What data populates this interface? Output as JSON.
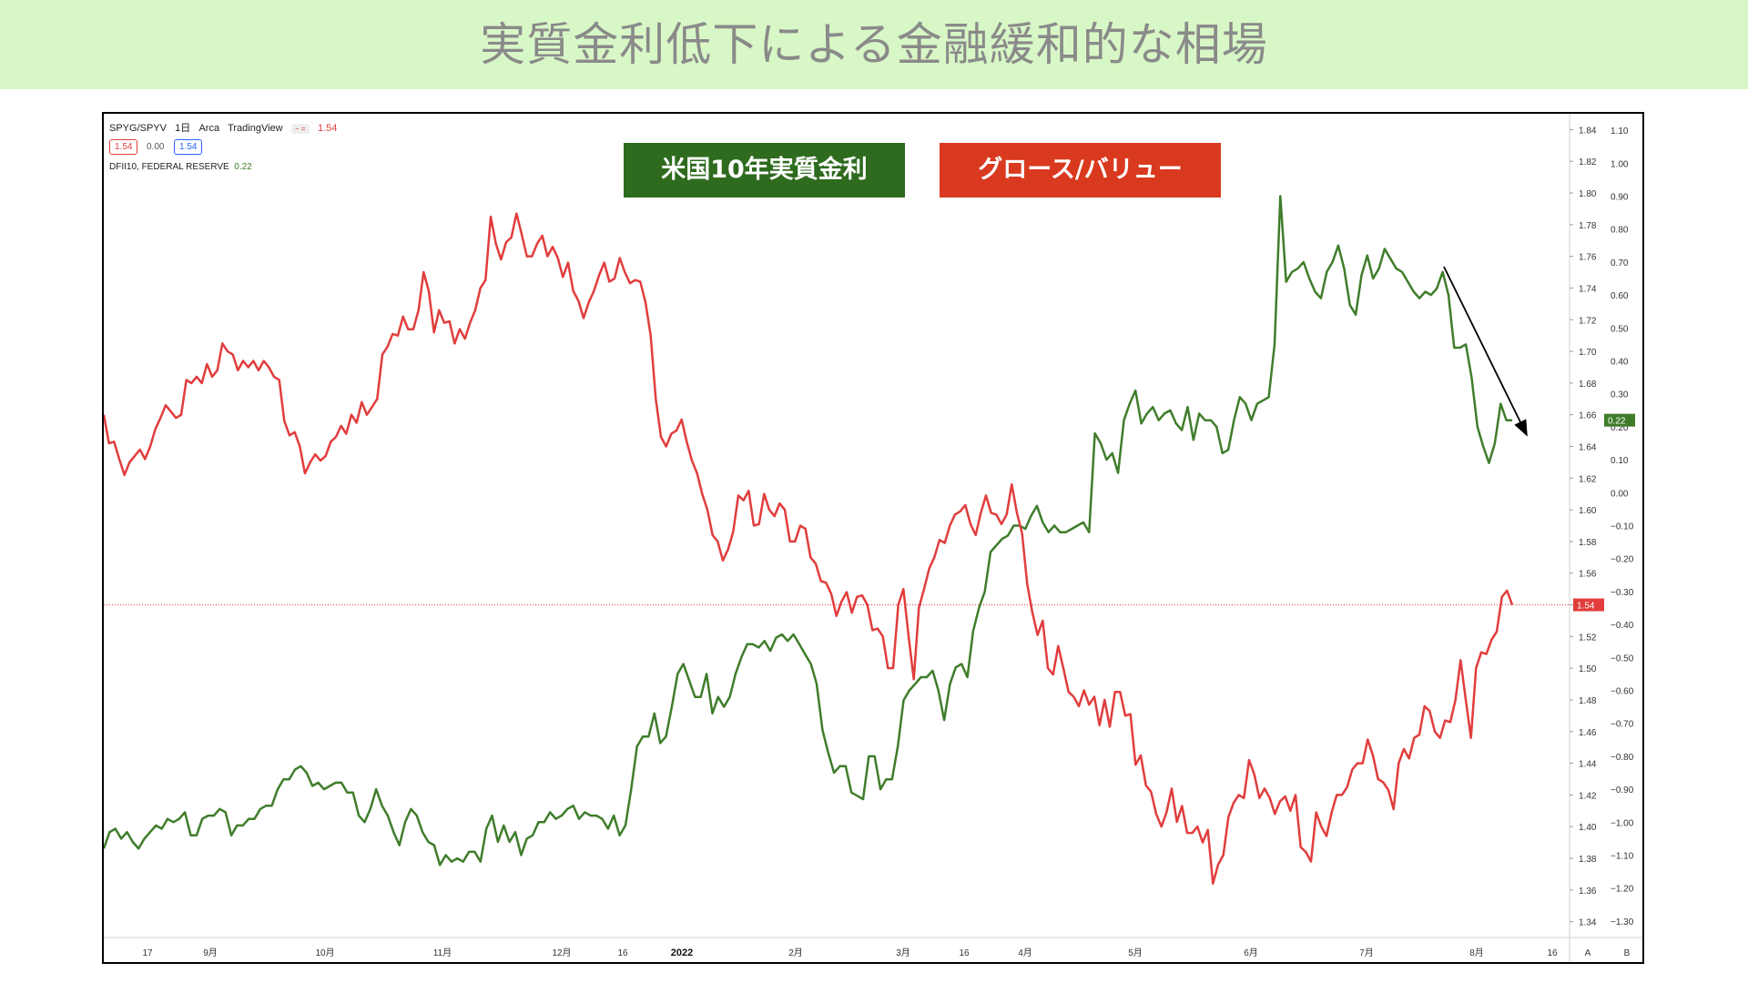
{
  "banner": {
    "title": "実質金利低下による金融緩和的な相場"
  },
  "header": {
    "symbol": "SPYG/SPYV",
    "interval": "1日",
    "exchange": "Arca",
    "source": "TradingView",
    "last_value": "1.54",
    "ohlc": [
      "1.54",
      "0.00",
      "1.54"
    ],
    "secondary": "DFII10, FEDERAL RESERVE",
    "secondary_value": "0.22"
  },
  "legend": {
    "green_label": "米国10年実質金利",
    "red_label": "グロース/バリュー"
  },
  "colors": {
    "green": "#3f7d2b",
    "red": "#e13d3d",
    "legend_green": "#2e6b1f",
    "legend_red": "#d9391f",
    "banner": "#d8f7c6"
  },
  "chart_data": {
    "type": "line",
    "x_tick_labels": [
      "17",
      "9月",
      "10月",
      "11月",
      "12月",
      "16",
      "2022",
      "2月",
      "3月",
      "16",
      "4月",
      "5月",
      "6月",
      "7月",
      "8月",
      "16"
    ],
    "series": [
      {
        "name": "グロース/バリュー",
        "axis": "left",
        "last_value": "1.54",
        "values": [
          1.66,
          1.642,
          1.643,
          1.632,
          1.622,
          1.63,
          1.634,
          1.638,
          1.632,
          1.64,
          1.651,
          1.658,
          1.666,
          1.662,
          1.658,
          1.66,
          1.682,
          1.68,
          1.684,
          1.68,
          1.692,
          1.684,
          1.688,
          1.705,
          1.7,
          1.698,
          1.688,
          1.694,
          1.69,
          1.694,
          1.688,
          1.694,
          1.69,
          1.684,
          1.682,
          1.656,
          1.647,
          1.649,
          1.64,
          1.623,
          1.63,
          1.635,
          1.631,
          1.634,
          1.643,
          1.646,
          1.653,
          1.648,
          1.66,
          1.655,
          1.668,
          1.66,
          1.665,
          1.67,
          1.698,
          1.703,
          1.711,
          1.71,
          1.722,
          1.714,
          1.714,
          1.726,
          1.75,
          1.738,
          1.712,
          1.726,
          1.718,
          1.719,
          1.705,
          1.714,
          1.708,
          1.718,
          1.726,
          1.74,
          1.745,
          1.785,
          1.768,
          1.758,
          1.769,
          1.772,
          1.787,
          1.774,
          1.76,
          1.76,
          1.768,
          1.773,
          1.76,
          1.766,
          1.759,
          1.747,
          1.756,
          1.738,
          1.732,
          1.721,
          1.731,
          1.738,
          1.748,
          1.756,
          1.744,
          1.746,
          1.759,
          1.75,
          1.743,
          1.745,
          1.744,
          1.731,
          1.71,
          1.67,
          1.646,
          1.64,
          1.648,
          1.65,
          1.657,
          1.643,
          1.631,
          1.623,
          1.61,
          1.6,
          1.584,
          1.58,
          1.568,
          1.575,
          1.586,
          1.609,
          1.606,
          1.612,
          1.59,
          1.591,
          1.61,
          1.6,
          1.596,
          1.604,
          1.6,
          1.58,
          1.58,
          1.59,
          1.588,
          1.57,
          1.566,
          1.555,
          1.554,
          1.547,
          1.533,
          1.542,
          1.548,
          1.535,
          1.545,
          1.546,
          1.54,
          1.524,
          1.525,
          1.52,
          1.5,
          1.5,
          1.54,
          1.55,
          1.52,
          1.493,
          1.538,
          1.55,
          1.563,
          1.57,
          1.581,
          1.579,
          1.59,
          1.597,
          1.599,
          1.603,
          1.591,
          1.584,
          1.598,
          1.609,
          1.598,
          1.597,
          1.591,
          1.597,
          1.616,
          1.598,
          1.585,
          1.553,
          1.535,
          1.521,
          1.53,
          1.5,
          1.496,
          1.514,
          1.5,
          1.485,
          1.482,
          1.476,
          1.486,
          1.477,
          1.482,
          1.464,
          1.48,
          1.463,
          1.485,
          1.485,
          1.47,
          1.471,
          1.439,
          1.445,
          1.426,
          1.422,
          1.408,
          1.4,
          1.409,
          1.424,
          1.403,
          1.413,
          1.396,
          1.396,
          1.4,
          1.39,
          1.398,
          1.364,
          1.376,
          1.382,
          1.406,
          1.415,
          1.42,
          1.418,
          1.442,
          1.433,
          1.418,
          1.424,
          1.418,
          1.408,
          1.416,
          1.419,
          1.41,
          1.42,
          1.387,
          1.384,
          1.378,
          1.409,
          1.4,
          1.394,
          1.409,
          1.42,
          1.42,
          1.425,
          1.436,
          1.44,
          1.44,
          1.455,
          1.445,
          1.43,
          1.428,
          1.423,
          1.411,
          1.44,
          1.449,
          1.443,
          1.456,
          1.458,
          1.476,
          1.473,
          1.46,
          1.456,
          1.467,
          1.466,
          1.48,
          1.505,
          1.48,
          1.456,
          1.5,
          1.51,
          1.509,
          1.518,
          1.523,
          1.545,
          1.549,
          1.54
        ]
      },
      {
        "name": "米国10年実質金利",
        "axis": "right",
        "last_value": "0.22",
        "values": [
          -1.08,
          -1.03,
          -1.02,
          -1.05,
          -1.03,
          -1.06,
          -1.08,
          -1.05,
          -1.03,
          -1.01,
          -1.02,
          -0.99,
          -1.0,
          -0.99,
          -0.97,
          -1.04,
          -1.04,
          -0.99,
          -0.98,
          -0.98,
          -0.96,
          -0.97,
          -1.04,
          -1.01,
          -1.01,
          -0.99,
          -0.99,
          -0.96,
          -0.95,
          -0.95,
          -0.9,
          -0.87,
          -0.87,
          -0.84,
          -0.83,
          -0.85,
          -0.89,
          -0.88,
          -0.9,
          -0.89,
          -0.88,
          -0.88,
          -0.91,
          -0.91,
          -0.98,
          -1.0,
          -0.96,
          -0.9,
          -0.95,
          -0.98,
          -1.03,
          -1.07,
          -1.0,
          -0.96,
          -0.98,
          -1.03,
          -1.06,
          -1.07,
          -1.13,
          -1.1,
          -1.12,
          -1.11,
          -1.12,
          -1.09,
          -1.09,
          -1.12,
          -1.02,
          -0.98,
          -1.06,
          -1.01,
          -1.06,
          -1.03,
          -1.1,
          -1.05,
          -1.04,
          -1.0,
          -1.0,
          -0.97,
          -0.99,
          -0.98,
          -0.96,
          -0.95,
          -0.99,
          -0.97,
          -0.98,
          -0.98,
          -0.99,
          -1.02,
          -0.98,
          -1.04,
          -1.01,
          -0.9,
          -0.77,
          -0.74,
          -0.74,
          -0.67,
          -0.76,
          -0.74,
          -0.65,
          -0.55,
          -0.52,
          -0.57,
          -0.62,
          -0.62,
          -0.55,
          -0.67,
          -0.62,
          -0.65,
          -0.62,
          -0.55,
          -0.5,
          -0.46,
          -0.46,
          -0.47,
          -0.45,
          -0.48,
          -0.44,
          -0.43,
          -0.45,
          -0.43,
          -0.46,
          -0.49,
          -0.52,
          -0.58,
          -0.72,
          -0.79,
          -0.85,
          -0.83,
          -0.83,
          -0.91,
          -0.92,
          -0.93,
          -0.8,
          -0.8,
          -0.9,
          -0.87,
          -0.87,
          -0.77,
          -0.63,
          -0.6,
          -0.58,
          -0.56,
          -0.56,
          -0.54,
          -0.6,
          -0.69,
          -0.58,
          -0.53,
          -0.52,
          -0.56,
          -0.42,
          -0.35,
          -0.3,
          -0.18,
          -0.16,
          -0.14,
          -0.13,
          -0.1,
          -0.1,
          -0.11,
          -0.07,
          -0.04,
          -0.09,
          -0.12,
          -0.1,
          -0.12,
          -0.12,
          -0.11,
          -0.1,
          -0.09,
          -0.12,
          0.18,
          0.15,
          0.1,
          0.12,
          0.06,
          0.22,
          0.27,
          0.31,
          0.21,
          0.24,
          0.26,
          0.22,
          0.24,
          0.25,
          0.21,
          0.19,
          0.26,
          0.16,
          0.24,
          0.22,
          0.22,
          0.2,
          0.12,
          0.13,
          0.22,
          0.29,
          0.27,
          0.22,
          0.27,
          0.28,
          0.29,
          0.45,
          0.9,
          0.64,
          0.67,
          0.68,
          0.7,
          0.65,
          0.61,
          0.59,
          0.67,
          0.7,
          0.75,
          0.68,
          0.57,
          0.54,
          0.66,
          0.72,
          0.65,
          0.68,
          0.74,
          0.71,
          0.68,
          0.67,
          0.64,
          0.61,
          0.59,
          0.61,
          0.6,
          0.62,
          0.67,
          0.6,
          0.44,
          0.44,
          0.45,
          0.35,
          0.2,
          0.14,
          0.09,
          0.15,
          0.27,
          0.22,
          0.22
        ]
      }
    ],
    "left_axis": {
      "min": 1.33,
      "max": 1.85,
      "ticks": [
        "1.84",
        "1.82",
        "1.80",
        "1.78",
        "1.76",
        "1.74",
        "1.72",
        "1.70",
        "1.68",
        "1.66",
        "1.64",
        "1.62",
        "1.60",
        "1.58",
        "1.56",
        "1.54",
        "1.52",
        "1.50",
        "1.48",
        "1.46",
        "1.44",
        "1.42",
        "1.40",
        "1.38",
        "1.36",
        "1.34"
      ]
    },
    "right_axis": {
      "min": -1.35,
      "max": 1.15,
      "ticks": [
        "1.10",
        "1.00",
        "0.90",
        "0.80",
        "0.70",
        "0.60",
        "0.50",
        "0.40",
        "0.30",
        "0.20",
        "0.10",
        "0.00",
        "−0.10",
        "−0.20",
        "−0.30",
        "−0.40",
        "−0.50",
        "−0.60",
        "−0.70",
        "−0.80",
        "−0.90",
        "−1.00",
        "−1.10",
        "−1.20",
        "−1.30"
      ]
    },
    "reference_line": {
      "value": 1.54,
      "label": "1.54"
    },
    "axis_buttons": [
      "A",
      "B"
    ],
    "annotation": "downward arrow over final real-rate decline"
  }
}
